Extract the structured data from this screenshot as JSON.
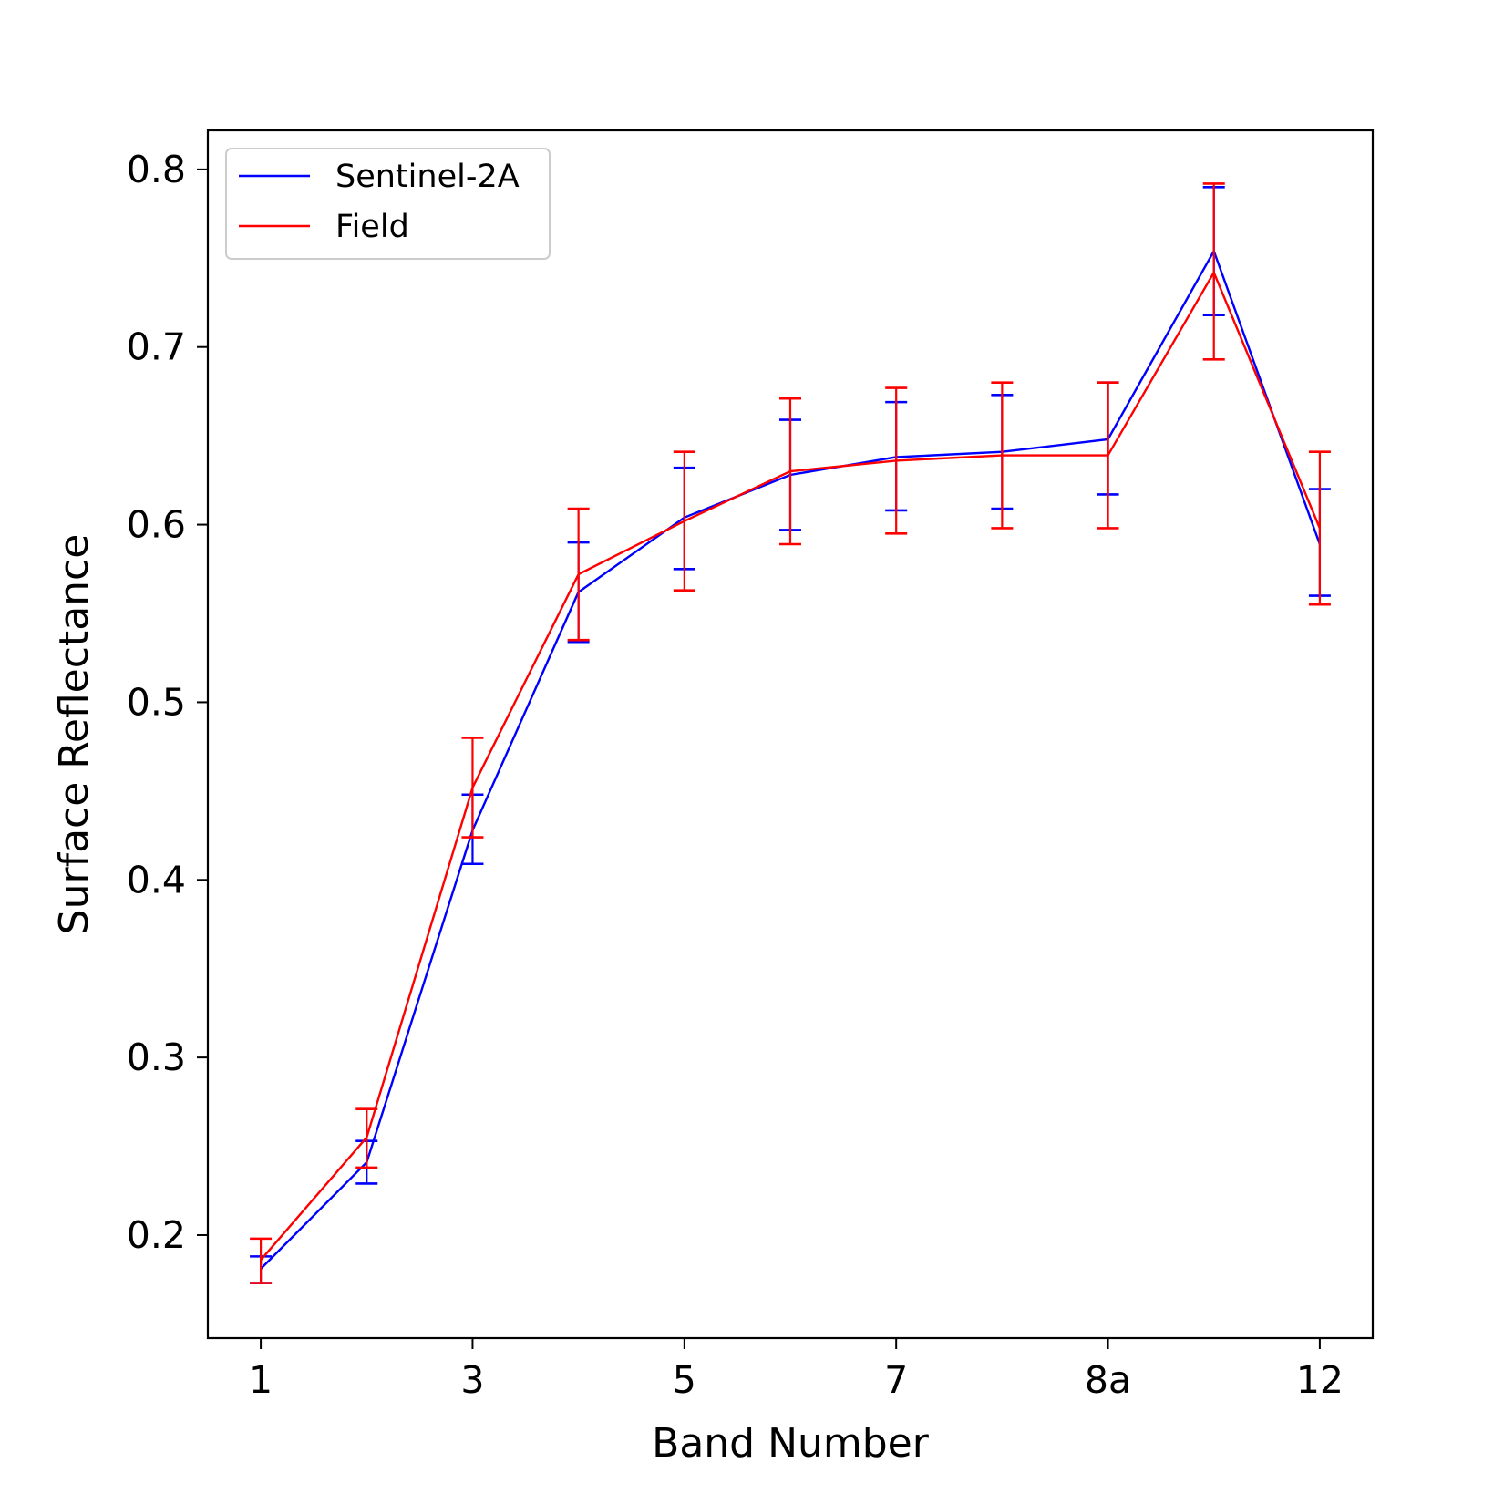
{
  "chart_data": {
    "type": "line",
    "title": "",
    "xlabel": "Band Number",
    "ylabel": "Surface Reflectance",
    "x_tick_labels": [
      "1",
      "3",
      "5",
      "7",
      "8a",
      "12"
    ],
    "x_tick_indices": [
      0,
      2,
      4,
      6,
      8,
      10
    ],
    "xlim": [
      -0.5,
      10.5
    ],
    "ylim": [
      0.142,
      0.822
    ],
    "y_ticks": [
      0.2,
      0.3,
      0.4,
      0.5,
      0.6,
      0.7,
      0.8
    ],
    "y_tick_labels": [
      "0.2",
      "0.3",
      "0.4",
      "0.5",
      "0.6",
      "0.7",
      "0.8"
    ],
    "grid": false,
    "legend": {
      "placement": "top-left"
    },
    "series": [
      {
        "name": "Sentinel-2A",
        "color": "#0000ff",
        "x": [
          0,
          1,
          2,
          3,
          4,
          5,
          6,
          7,
          8,
          9,
          10
        ],
        "values": [
          0.181,
          0.241,
          0.428,
          0.562,
          0.604,
          0.628,
          0.638,
          0.641,
          0.648,
          0.754,
          0.589
        ],
        "err_low": [
          0.173,
          0.229,
          0.409,
          0.534,
          0.575,
          0.597,
          0.608,
          0.609,
          0.617,
          0.718,
          0.56
        ],
        "err_high": [
          0.188,
          0.253,
          0.448,
          0.59,
          0.632,
          0.659,
          0.669,
          0.673,
          0.68,
          0.79,
          0.62
        ]
      },
      {
        "name": "Field",
        "color": "#ff0000",
        "x": [
          0,
          1,
          2,
          3,
          4,
          5,
          6,
          7,
          8,
          9,
          10
        ],
        "values": [
          0.186,
          0.255,
          0.452,
          0.572,
          0.602,
          0.63,
          0.636,
          0.639,
          0.639,
          0.742,
          0.598
        ],
        "err_low": [
          0.173,
          0.238,
          0.424,
          0.535,
          0.563,
          0.589,
          0.595,
          0.598,
          0.598,
          0.693,
          0.555
        ],
        "err_high": [
          0.198,
          0.271,
          0.48,
          0.609,
          0.641,
          0.671,
          0.677,
          0.68,
          0.68,
          0.792,
          0.641
        ]
      }
    ]
  }
}
